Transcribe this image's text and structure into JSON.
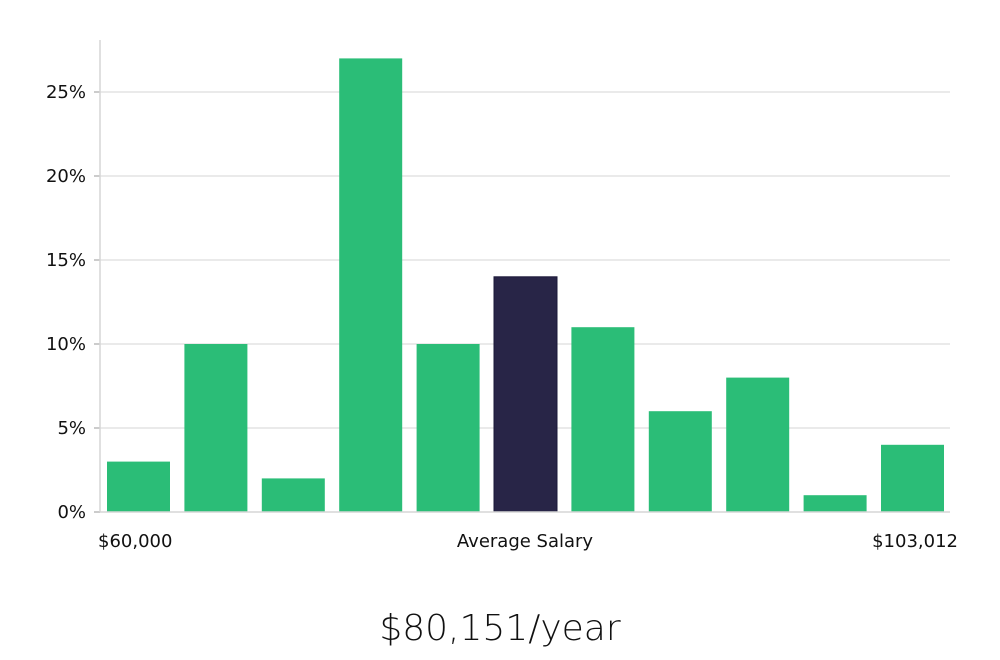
{
  "chart_data": {
    "type": "bar",
    "values": [
      3,
      10,
      2,
      27,
      10,
      14,
      11,
      6,
      8,
      1,
      4
    ],
    "highlight_index": 5,
    "ylim": [
      0,
      28
    ],
    "y_ticks": [
      {
        "value": 0,
        "label": "0%"
      },
      {
        "value": 5,
        "label": "5%"
      },
      {
        "value": 10,
        "label": "10%"
      },
      {
        "value": 15,
        "label": "15%"
      },
      {
        "value": 20,
        "label": "20%"
      },
      {
        "value": 25,
        "label": "25%"
      }
    ],
    "x_labels": {
      "min": "$60,000",
      "center": "Average Salary",
      "max": "$103,012"
    },
    "grid": true,
    "colors": {
      "bar": "#2bbd77",
      "highlight": "#282547",
      "grid": "#e3e3e3",
      "axis": "#d6d6d6"
    }
  },
  "headline": "$80,151/year"
}
